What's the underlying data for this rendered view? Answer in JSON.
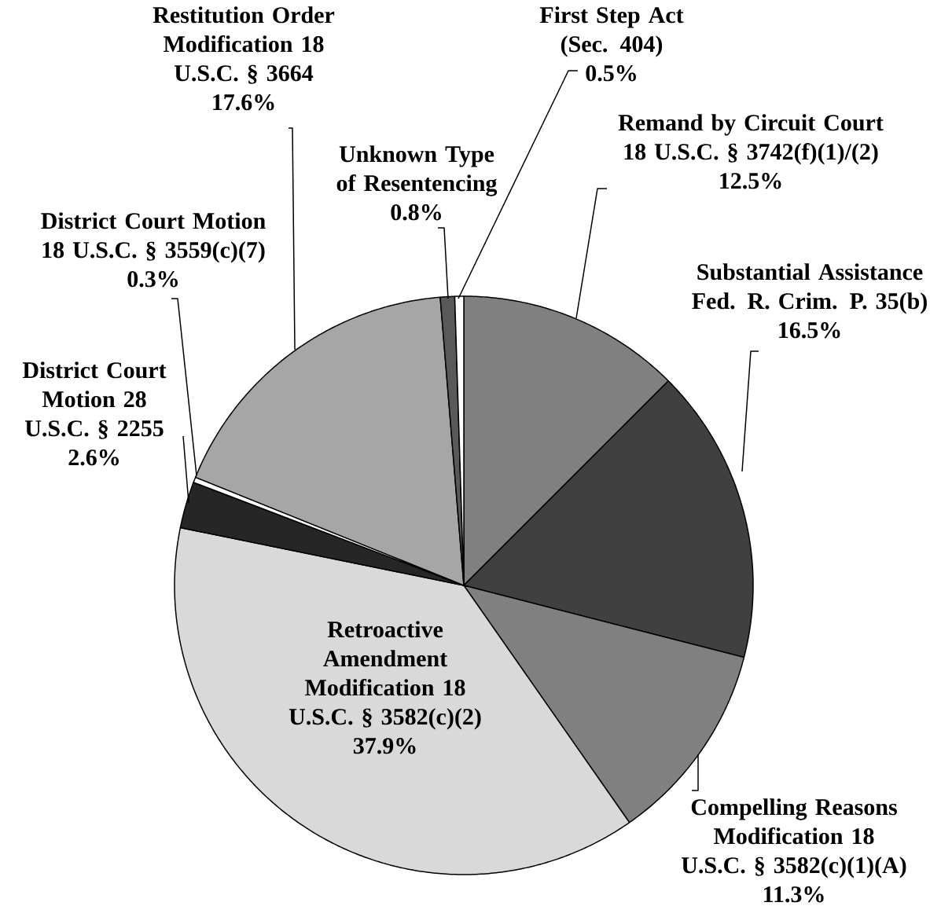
{
  "chart_data": {
    "type": "pie",
    "categories": [
      "Remand by Circuit Court 18 U.S.C. § 3742(f)(1)/(2)",
      "Substantial Assistance Fed. R. Crim. P. 35(b)",
      "Compelling Reasons Modification 18 U.S.C. § 3582(c)(1)(A)",
      "Retroactive Amendment Modification 18 U.S.C. § 3582(c)(2)",
      "District Court Motion 28 U.S.C. § 2255",
      "District Court Motion 18 U.S.C. § 3559(c)(7)",
      "Restitution Order Modification 18 U.S.C. § 3664",
      "Unknown Type of Resentencing",
      "First Step Act (Sec. 404)"
    ],
    "values": [
      12.5,
      16.5,
      11.3,
      37.9,
      2.6,
      0.3,
      17.6,
      0.8,
      0.5
    ],
    "colors": [
      "#808080",
      "#404040",
      "#808080",
      "#d9d9d9",
      "#262626",
      "#ffffff",
      "#a6a6a6",
      "#595959",
      "#ffffff"
    ],
    "value_labels": [
      "12.5%",
      "16.5%",
      "11.3%",
      "37.9%",
      "2.6%",
      "0.3%",
      "17.6%",
      "0.8%",
      "0.5%"
    ]
  }
}
